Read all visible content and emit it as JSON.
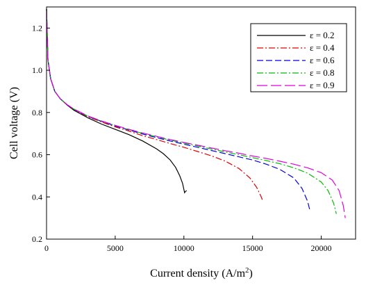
{
  "chart_data": {
    "type": "line",
    "xlabel": "Current density (A/m",
    "xlabel_sup": "2",
    "xlabel_end": ")",
    "ylabel": "Cell voltage (V)",
    "xlim": [
      0,
      22500
    ],
    "ylim": [
      0.2,
      1.3
    ],
    "x_ticks": [
      0,
      5000,
      10000,
      15000,
      20000
    ],
    "x_tick_labels": [
      "0",
      "5000",
      "10000",
      "15000",
      "20000"
    ],
    "y_ticks": [
      0.2,
      0.4,
      0.6,
      0.8,
      1.0,
      1.2
    ],
    "y_tick_labels": [
      "0.2",
      "0.4",
      "0.6",
      "0.8",
      "1.0",
      "1.2"
    ],
    "grid": false,
    "legend_position": "top-right",
    "series": [
      {
        "name": "ε = 0.2",
        "color": "#000000",
        "dash": "solid",
        "x": [
          0,
          100,
          300,
          600,
          1000,
          1500,
          2000,
          3000,
          4000,
          5000,
          6000,
          7000,
          8000,
          8500,
          9000,
          9400,
          9700,
          9900,
          10000,
          10050,
          10100,
          10200
        ],
        "y": [
          1.29,
          1.05,
          0.96,
          0.9,
          0.865,
          0.835,
          0.81,
          0.775,
          0.745,
          0.72,
          0.695,
          0.665,
          0.628,
          0.605,
          0.575,
          0.54,
          0.5,
          0.465,
          0.435,
          0.42,
          0.425,
          0.43
        ]
      },
      {
        "name": "ε = 0.4",
        "color": "#e00000",
        "dash": "dashdot",
        "x": [
          0,
          100,
          300,
          600,
          1000,
          1500,
          2000,
          3000,
          4000,
          5000,
          6000,
          7000,
          8000,
          9000,
          10000,
          11000,
          12000,
          13000,
          14000,
          14800,
          15300,
          15600,
          15750
        ],
        "y": [
          1.29,
          1.05,
          0.96,
          0.9,
          0.865,
          0.837,
          0.814,
          0.78,
          0.755,
          0.732,
          0.712,
          0.69,
          0.672,
          0.653,
          0.635,
          0.615,
          0.595,
          0.57,
          0.535,
          0.49,
          0.445,
          0.405,
          0.38
        ]
      },
      {
        "name": "ε = 0.6",
        "color": "#0000e0",
        "dash": "dashed",
        "x": [
          0,
          100,
          300,
          600,
          1000,
          1500,
          2000,
          3000,
          4000,
          5000,
          6000,
          7000,
          8000,
          9000,
          10000,
          11000,
          12000,
          13000,
          14000,
          15000,
          16000,
          17000,
          18000,
          18600,
          19000,
          19200
        ],
        "y": [
          1.29,
          1.05,
          0.96,
          0.9,
          0.865,
          0.837,
          0.815,
          0.782,
          0.758,
          0.736,
          0.717,
          0.698,
          0.681,
          0.665,
          0.65,
          0.635,
          0.62,
          0.605,
          0.59,
          0.575,
          0.555,
          0.53,
          0.49,
          0.44,
          0.38,
          0.33
        ]
      },
      {
        "name": "ε = 0.8",
        "color": "#00bb00",
        "dash": "dashdot",
        "x": [
          0,
          100,
          300,
          600,
          1000,
          1500,
          2000,
          3000,
          4000,
          5000,
          6000,
          7000,
          8000,
          9000,
          10000,
          11000,
          12000,
          13000,
          14000,
          15000,
          16000,
          17000,
          18000,
          19000,
          20000,
          20500,
          20900,
          21100
        ],
        "y": [
          1.29,
          1.05,
          0.96,
          0.9,
          0.865,
          0.837,
          0.816,
          0.783,
          0.759,
          0.738,
          0.719,
          0.701,
          0.685,
          0.669,
          0.655,
          0.641,
          0.627,
          0.613,
          0.6,
          0.586,
          0.572,
          0.557,
          0.538,
          0.513,
          0.47,
          0.43,
          0.37,
          0.32
        ]
      },
      {
        "name": "ε = 0.9",
        "color": "#dd00dd",
        "dash": "longdash",
        "x": [
          0,
          100,
          300,
          600,
          1000,
          1500,
          2000,
          3000,
          4000,
          5000,
          6000,
          7000,
          8000,
          9000,
          10000,
          11000,
          12000,
          13000,
          14000,
          15000,
          16000,
          17000,
          18000,
          19000,
          20000,
          20800,
          21300,
          21600,
          21750
        ],
        "y": [
          1.29,
          1.05,
          0.96,
          0.9,
          0.865,
          0.837,
          0.816,
          0.784,
          0.76,
          0.739,
          0.72,
          0.703,
          0.687,
          0.672,
          0.658,
          0.645,
          0.632,
          0.619,
          0.607,
          0.594,
          0.582,
          0.569,
          0.555,
          0.538,
          0.515,
          0.48,
          0.43,
          0.36,
          0.3
        ]
      }
    ]
  }
}
